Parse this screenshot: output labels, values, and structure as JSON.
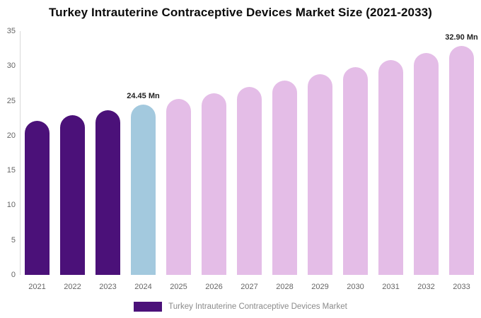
{
  "title": "Turkey Intrauterine Contraceptive Devices Market Size (2021-2033)",
  "colors": {
    "historical": "#4B1179",
    "base_year": "#A3C9DE",
    "forecast": "#E4BDE7",
    "axis_text": "#666666",
    "annotation_text": "#1f1f1f",
    "legend_text": "#8a8a8a",
    "axis_line": "#d9d9d9"
  },
  "legend": {
    "label": "Turkey Intrauterine Contraceptive Devices Market",
    "swatch_color": "#4B1179"
  },
  "chart_data": {
    "type": "bar",
    "title": "Turkey Intrauterine Contraceptive Devices Market Size (2021-2033)",
    "unit": "Mn",
    "categories": [
      "2021",
      "2022",
      "2023",
      "2024",
      "2025",
      "2026",
      "2027",
      "2028",
      "2029",
      "2030",
      "2031",
      "2032",
      "2033"
    ],
    "values": [
      22.14,
      22.88,
      23.65,
      24.45,
      25.27,
      26.12,
      27.0,
      27.91,
      28.84,
      29.81,
      30.81,
      31.84,
      32.9
    ],
    "bar_roles": [
      "historical",
      "historical",
      "historical",
      "base_year",
      "forecast",
      "forecast",
      "forecast",
      "forecast",
      "forecast",
      "forecast",
      "forecast",
      "forecast",
      "forecast"
    ],
    "annotations": [
      {
        "category": "2024",
        "text": "24.45 Mn"
      },
      {
        "category": "2033",
        "text": "32.90 Mn"
      }
    ],
    "xlabel": "",
    "ylabel": "",
    "ylim": [
      0,
      35
    ],
    "yticks": [
      0,
      5,
      10,
      15,
      20,
      25,
      30,
      35
    ],
    "grid": false,
    "legend_position": "bottom"
  }
}
